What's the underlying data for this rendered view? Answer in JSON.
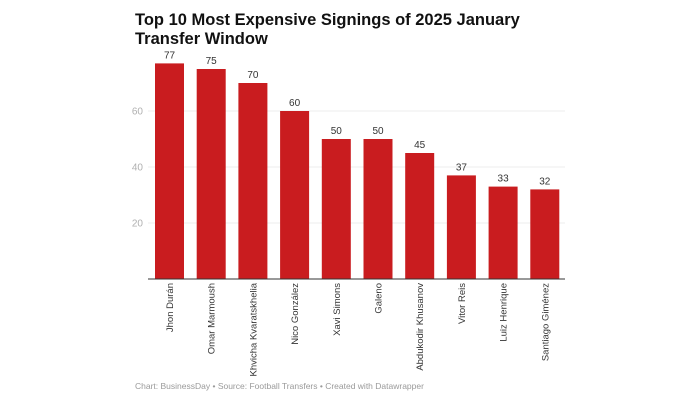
{
  "chart_data": {
    "type": "bar",
    "title": "Top 10 Most Expensive Signings of 2025 January Transfer Window",
    "categories": [
      "Jhon Durán",
      "Omar Marmoush",
      "Khvicha Kvaratskhelia",
      "Nico González",
      "Xavi Simons",
      "Galeno",
      "Abdukodir Khusanov",
      "Vitor Reis",
      "Luiz Henrique",
      "Santiago Giménez"
    ],
    "values": [
      77,
      75,
      70,
      60,
      50,
      50,
      45,
      37,
      33,
      32
    ],
    "yticks": [
      20,
      40,
      60
    ],
    "ylim": [
      0,
      80
    ],
    "xlabel": "",
    "ylabel": "",
    "grid": true,
    "bar_color": "#c91c1f"
  },
  "footer": "Chart: BusinessDay • Source: Football Transfers • Created with Datawrapper"
}
